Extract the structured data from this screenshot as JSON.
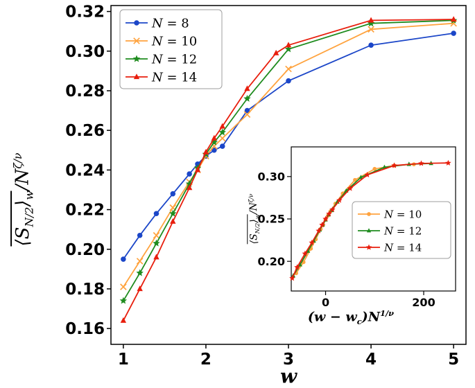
{
  "figure": {
    "background": "#ffffff",
    "axis_color": "#000000"
  },
  "labels": {
    "angle_open": "⟨",
    "S": "S",
    "S_sub": "N/2",
    "angle_close": "⟩",
    "w": "w",
    "slash": "/",
    "N": "N",
    "zeta_nu": "ζ/ν",
    "one_nu": "1/ν",
    "paren_open": "(",
    "minus": "−",
    "c_sub": "c",
    "paren_close": ")"
  },
  "chart_data": {
    "type": "line",
    "main": {
      "xlabel": "w",
      "ylabel": "⟨S_N/2⟩_w / N^(ζ/ν)",
      "xlim": [
        0.85,
        5.15
      ],
      "ylim": [
        0.152,
        0.323
      ],
      "grid": false,
      "legend_position": "upper-left",
      "xticks": {
        "values": [
          1,
          2,
          3,
          4,
          5
        ],
        "labels": [
          "1",
          "2",
          "3",
          "4",
          "5"
        ]
      },
      "yticks": {
        "values": [
          0.16,
          0.18,
          0.2,
          0.22,
          0.24,
          0.26,
          0.28,
          0.3,
          0.32
        ],
        "labels": [
          "0.16",
          "0.18",
          "0.20",
          "0.22",
          "0.24",
          "0.26",
          "0.28",
          "0.30",
          "0.32"
        ]
      },
      "series": [
        {
          "label": "N = 8",
          "color": "#1b46c8",
          "marker": "circle",
          "x": [
            1,
            1.2,
            1.4,
            1.6,
            1.8,
            1.9,
            2.0,
            2.1,
            2.2,
            2.5,
            3.0,
            4.0,
            5.0
          ],
          "y": [
            0.195,
            0.207,
            0.218,
            0.228,
            0.238,
            0.243,
            0.247,
            0.25,
            0.252,
            0.27,
            0.285,
            0.303,
            0.309
          ]
        },
        {
          "label": "N = 10",
          "color": "#ffa33e",
          "marker": "x",
          "x": [
            1,
            1.2,
            1.4,
            1.6,
            1.8,
            1.9,
            2.0,
            2.1,
            2.2,
            2.5,
            3.0,
            4.0,
            5.0
          ],
          "y": [
            0.181,
            0.194,
            0.207,
            0.221,
            0.234,
            0.24,
            0.247,
            0.252,
            0.256,
            0.268,
            0.291,
            0.311,
            0.314
          ]
        },
        {
          "label": "N = 12",
          "color": "#1f8c1f",
          "marker": "star",
          "x": [
            1,
            1.2,
            1.4,
            1.6,
            1.8,
            1.9,
            2.0,
            2.1,
            2.2,
            2.5,
            3.0,
            4.0,
            5.0
          ],
          "y": [
            0.174,
            0.188,
            0.203,
            0.218,
            0.233,
            0.241,
            0.248,
            0.254,
            0.259,
            0.276,
            0.301,
            0.314,
            0.3155
          ]
        },
        {
          "label": "N = 14",
          "color": "#e81e0d",
          "marker": "triangle",
          "x": [
            1,
            1.2,
            1.4,
            1.6,
            1.8,
            1.9,
            2.0,
            2.1,
            2.2,
            2.5,
            2.85,
            3.0,
            4.0,
            5.0
          ],
          "y": [
            0.164,
            0.18,
            0.196,
            0.214,
            0.231,
            0.24,
            0.249,
            0.256,
            0.262,
            0.281,
            0.299,
            0.303,
            0.3155,
            0.316
          ]
        }
      ]
    },
    "inset": {
      "xlabel": "(w − w_c)N^(1/ν)",
      "ylabel": "⟨S_N/2⟩_w / N^(ζ/ν)",
      "xlim": [
        -70,
        265
      ],
      "ylim": [
        0.165,
        0.335
      ],
      "grid": false,
      "legend_position": "center-right",
      "xticks": {
        "values": [
          0,
          200
        ],
        "labels": [
          "0",
          "200"
        ]
      },
      "yticks": {
        "values": [
          0.2,
          0.25,
          0.3
        ],
        "labels": [
          "0.20",
          "0.25",
          "0.30"
        ]
      },
      "series": [
        {
          "label": "N = 10",
          "color": "#ffa33e",
          "marker": "circle",
          "x": [
            -60,
            -45,
            -30,
            -20,
            -10,
            -5,
            0,
            5,
            10,
            20,
            35,
            60,
            100,
            140,
            180
          ],
          "y": [
            0.186,
            0.199,
            0.215,
            0.226,
            0.238,
            0.243,
            0.249,
            0.254,
            0.259,
            0.268,
            0.28,
            0.296,
            0.309,
            0.313,
            0.3145
          ]
        },
        {
          "label": "N = 12",
          "color": "#1f8c1f",
          "marker": "triangle",
          "x": [
            -66,
            -52,
            -36,
            -24,
            -12,
            -6,
            0,
            6,
            12,
            24,
            42,
            72,
            120,
            170,
            215
          ],
          "y": [
            0.183,
            0.196,
            0.212,
            0.224,
            0.237,
            0.243,
            0.249,
            0.255,
            0.26,
            0.27,
            0.283,
            0.299,
            0.311,
            0.3145,
            0.3155
          ]
        },
        {
          "label": "N = 14",
          "color": "#e81e0d",
          "marker": "star",
          "x": [
            -68,
            -58,
            -42,
            -28,
            -14,
            -7,
            0,
            7,
            14,
            28,
            50,
            85,
            140,
            195,
            250
          ],
          "y": [
            0.18,
            0.193,
            0.209,
            0.222,
            0.236,
            0.243,
            0.25,
            0.256,
            0.261,
            0.272,
            0.286,
            0.302,
            0.313,
            0.3155,
            0.316
          ]
        }
      ]
    }
  }
}
